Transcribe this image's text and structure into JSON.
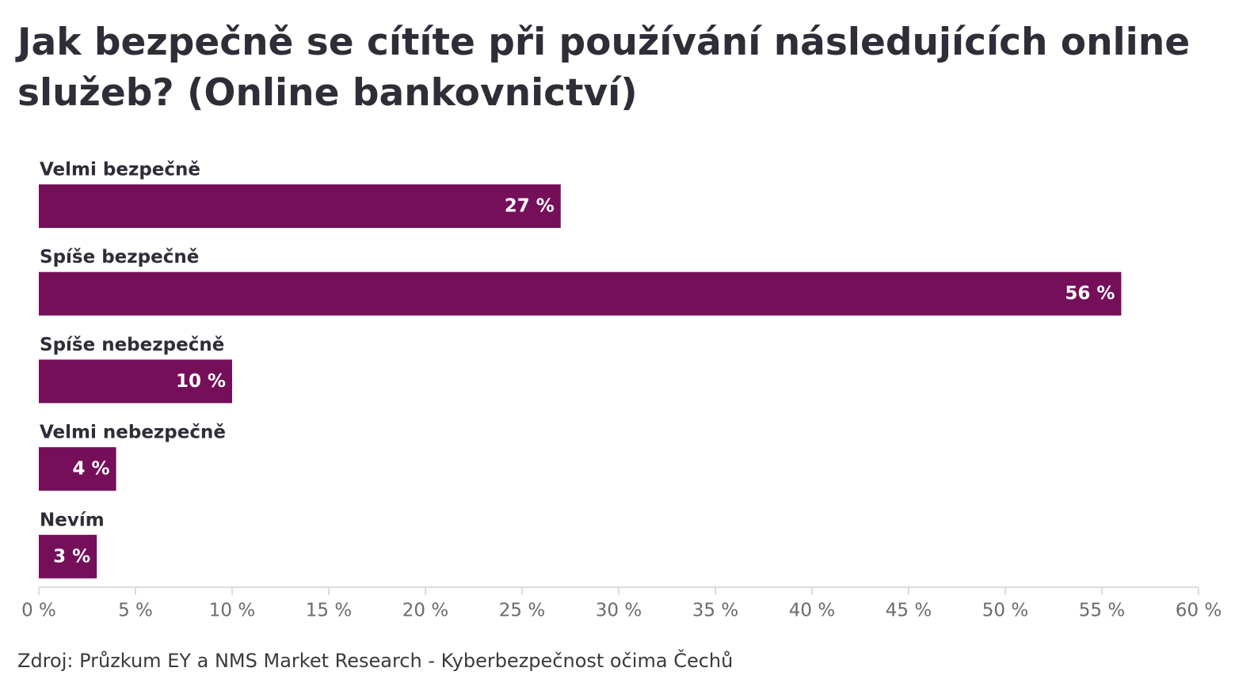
{
  "chart_data": {
    "type": "bar",
    "orientation": "horizontal",
    "title": "Jak bezpečně se cítíte při používání následujících online služeb? (Online bankovnictví)",
    "categories": [
      "Velmi bezpečně",
      "Spíše bezpečně",
      "Spíše nebezpečně",
      "Velmi nebezpečně",
      "Nevím"
    ],
    "values": [
      27,
      56,
      10,
      4,
      3
    ],
    "value_labels": [
      "27 %",
      "56 %",
      "10 %",
      "4 %",
      "3 %"
    ],
    "color": "#750f5a",
    "xlim": [
      0,
      60
    ],
    "xticks": [
      {
        "value": 0,
        "label": "0 %"
      },
      {
        "value": 5,
        "label": "5 %"
      },
      {
        "value": 10,
        "label": "10 %"
      },
      {
        "value": 15,
        "label": "15 %"
      },
      {
        "value": 20,
        "label": "20 %"
      },
      {
        "value": 25,
        "label": "25 %"
      },
      {
        "value": 30,
        "label": "30 %"
      },
      {
        "value": 35,
        "label": "35 %"
      },
      {
        "value": 40,
        "label": "40 %"
      },
      {
        "value": 45,
        "label": "45 %"
      },
      {
        "value": 50,
        "label": "50 %"
      },
      {
        "value": 55,
        "label": "55 %"
      },
      {
        "value": 60,
        "label": "60 %"
      }
    ],
    "source": "Zdroj: Průzkum EY a NMS Market Research - Kyberbezpečnost očima Čechů"
  }
}
